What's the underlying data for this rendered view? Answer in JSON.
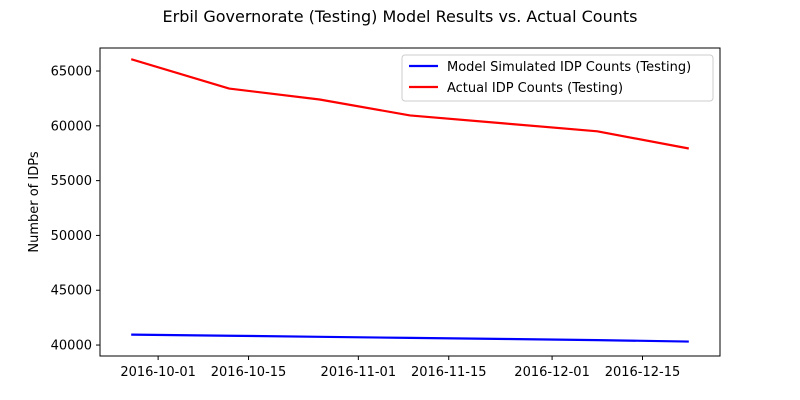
{
  "chart_data": {
    "type": "line",
    "title": "Erbil Governorate (Testing) Model Results vs. Actual Counts",
    "xlabel": "",
    "ylabel": "Number of IDPs",
    "x": [
      "2016-09-27",
      "2016-10-12",
      "2016-10-26",
      "2016-11-09",
      "2016-11-24",
      "2016-12-08",
      "2016-12-22"
    ],
    "xlim": [
      "2016-09-22",
      "2016-12-27"
    ],
    "ylim": [
      39000,
      67100
    ],
    "x_ticks": [
      "2016-10-01",
      "2016-10-15",
      "2016-11-01",
      "2016-11-15",
      "2016-12-01",
      "2016-12-15"
    ],
    "y_ticks": [
      40000,
      45000,
      50000,
      55000,
      60000,
      65000
    ],
    "y_tick_labels": [
      "40000",
      "45000",
      "50000",
      "55000",
      "60000",
      "65000"
    ],
    "grid": false,
    "legend_position": "upper-right",
    "series": [
      {
        "name": "Model Simulated IDP Counts (Testing)",
        "color": "#0000ff",
        "values": [
          40950,
          40850,
          40750,
          40650,
          40550,
          40450,
          40320
        ]
      },
      {
        "name": "Actual IDP Counts (Testing)",
        "color": "#ff0000",
        "values": [
          66050,
          63400,
          62400,
          60950,
          60200,
          59500,
          57950
        ]
      }
    ]
  }
}
